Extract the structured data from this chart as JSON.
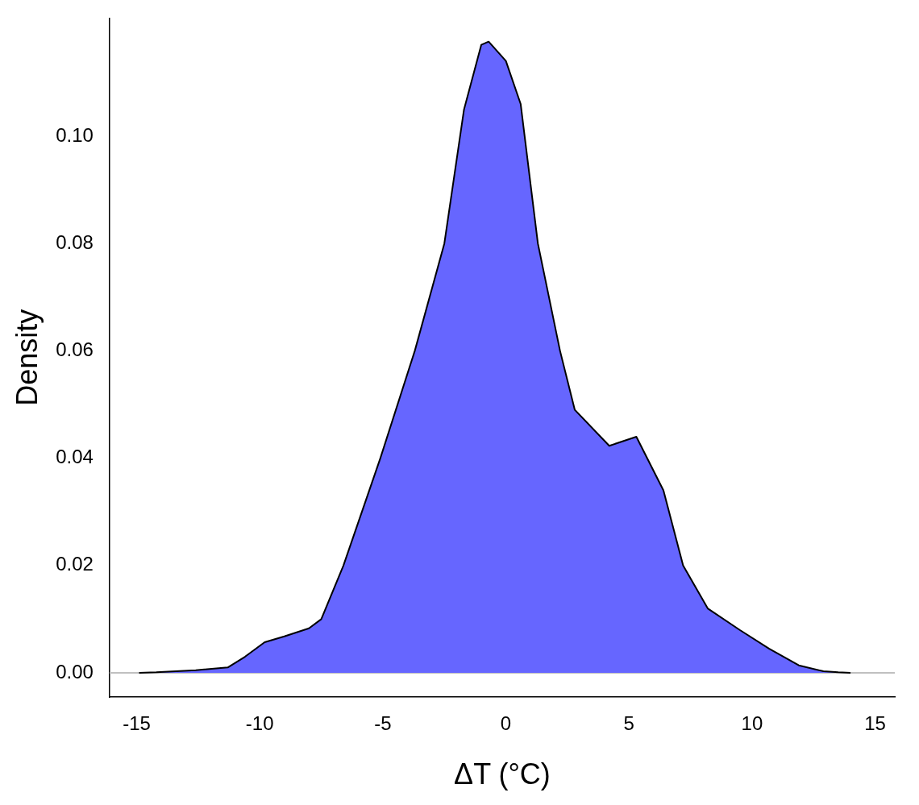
{
  "chart_data": {
    "type": "area",
    "xlabel": "ΔT (°C)",
    "ylabel": "Density",
    "xlim": [
      -16.1,
      15.8
    ],
    "ylim": [
      -0.0045,
      0.122
    ],
    "xticks": [
      -15,
      -10,
      -5,
      0,
      5,
      10,
      15
    ],
    "yticks": [
      {
        "value": 0,
        "label": "0.00"
      },
      {
        "value": 0.02,
        "label": "0.02"
      },
      {
        "value": 0.04,
        "label": "0.04"
      },
      {
        "value": 0.06,
        "label": "0.06"
      },
      {
        "value": 0.08,
        "label": "0.08"
      },
      {
        "value": 0.1,
        "label": "0.10"
      }
    ],
    "grid": false,
    "legend": false,
    "marker": "none",
    "ref_lines": [
      {
        "axis": "y",
        "value": 0,
        "color": "#c0c0c0"
      }
    ],
    "series": [
      {
        "color": "#6666ff",
        "x": [
          -14.9,
          -14.2,
          -12.6,
          -11.3,
          -10.6,
          -9.8,
          -9.0,
          -8.0,
          -7.5,
          -6.6,
          -5.1,
          -3.7,
          -2.5,
          -1.7,
          -1.0,
          -0.7,
          0,
          0.6,
          1.3,
          2.2,
          2.8,
          4.2,
          5.3,
          6.4,
          7.2,
          8.2,
          9.5,
          10.7,
          11.9,
          12.9,
          13.5,
          14.0
        ],
        "values": [
          0,
          0.0001,
          0.0005,
          0.001,
          0.003,
          0.0057,
          0.0068,
          0.0083,
          0.01,
          0.02,
          0.04,
          0.06,
          0.08,
          0.105,
          0.117,
          0.1176,
          0.114,
          0.106,
          0.08,
          0.06,
          0.049,
          0.0423,
          0.044,
          0.034,
          0.02,
          0.012,
          0.008,
          0.0045,
          0.0014,
          0.0003,
          0.0001,
          0
        ]
      }
    ]
  }
}
